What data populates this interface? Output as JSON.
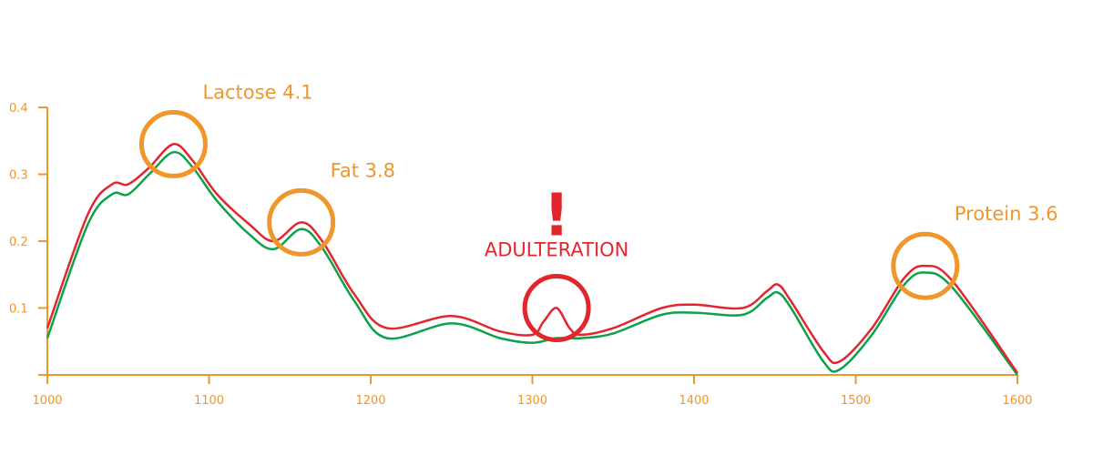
{
  "chart_data": {
    "type": "line",
    "title": "",
    "xlabel": "",
    "ylabel": "",
    "xlim": [
      1000,
      1600
    ],
    "ylim": [
      0,
      0.4
    ],
    "x_ticks": [
      1000,
      1100,
      1200,
      1300,
      1400,
      1500,
      1600
    ],
    "y_ticks": [
      0.1,
      0.2,
      0.3,
      0.4
    ],
    "grid": false,
    "colors": {
      "axis": "#f0962a",
      "annotation": "#f0962a",
      "alert": "#e2262e"
    },
    "series": [
      {
        "color": "#e2262e",
        "x": [
          1000,
          1025,
          1040,
          1050,
          1063,
          1078,
          1090,
          1105,
          1125,
          1140,
          1157,
          1170,
          1190,
          1210,
          1250,
          1280,
          1300,
          1307,
          1315,
          1323,
          1330,
          1350,
          1380,
          1400,
          1430,
          1445,
          1452,
          1460,
          1480,
          1490,
          1510,
          1530,
          1543,
          1560,
          1600
        ],
        "y": [
          0.07,
          0.24,
          0.285,
          0.285,
          0.31,
          0.345,
          0.32,
          0.27,
          0.225,
          0.2,
          0.228,
          0.2,
          0.12,
          0.07,
          0.088,
          0.065,
          0.06,
          0.08,
          0.1,
          0.07,
          0.06,
          0.07,
          0.1,
          0.105,
          0.1,
          0.125,
          0.135,
          0.11,
          0.035,
          0.02,
          0.07,
          0.145,
          0.163,
          0.14,
          0.003
        ]
      },
      {
        "color": "#0fa04a",
        "x": [
          1000,
          1025,
          1040,
          1050,
          1063,
          1078,
          1090,
          1105,
          1125,
          1140,
          1157,
          1170,
          1190,
          1210,
          1250,
          1280,
          1300,
          1315,
          1330,
          1350,
          1380,
          1400,
          1430,
          1445,
          1452,
          1460,
          1480,
          1490,
          1510,
          1530,
          1543,
          1560,
          1600
        ],
        "y": [
          0.055,
          0.225,
          0.27,
          0.27,
          0.3,
          0.333,
          0.31,
          0.26,
          0.21,
          0.188,
          0.218,
          0.19,
          0.11,
          0.055,
          0.077,
          0.055,
          0.048,
          0.055,
          0.055,
          0.062,
          0.09,
          0.093,
          0.09,
          0.115,
          0.123,
          0.1,
          0.02,
          0.008,
          0.06,
          0.135,
          0.153,
          0.13,
          0.0
        ]
      }
    ],
    "annotations": [
      {
        "label": "Lactose 4.1",
        "x": 1078,
        "y": 0.345,
        "color": "#f0962a",
        "label_side": "top-right"
      },
      {
        "label": "Fat 3.8",
        "x": 1157,
        "y": 0.228,
        "color": "#f0962a",
        "label_side": "top-right"
      },
      {
        "label": "Protein 3.6",
        "x": 1543,
        "y": 0.163,
        "color": "#f0962a",
        "label_side": "top-right"
      },
      {
        "label": "ADULTERATION",
        "mark": "!",
        "x": 1315,
        "y": 0.1,
        "color": "#e2262e",
        "label_side": "top"
      }
    ]
  }
}
